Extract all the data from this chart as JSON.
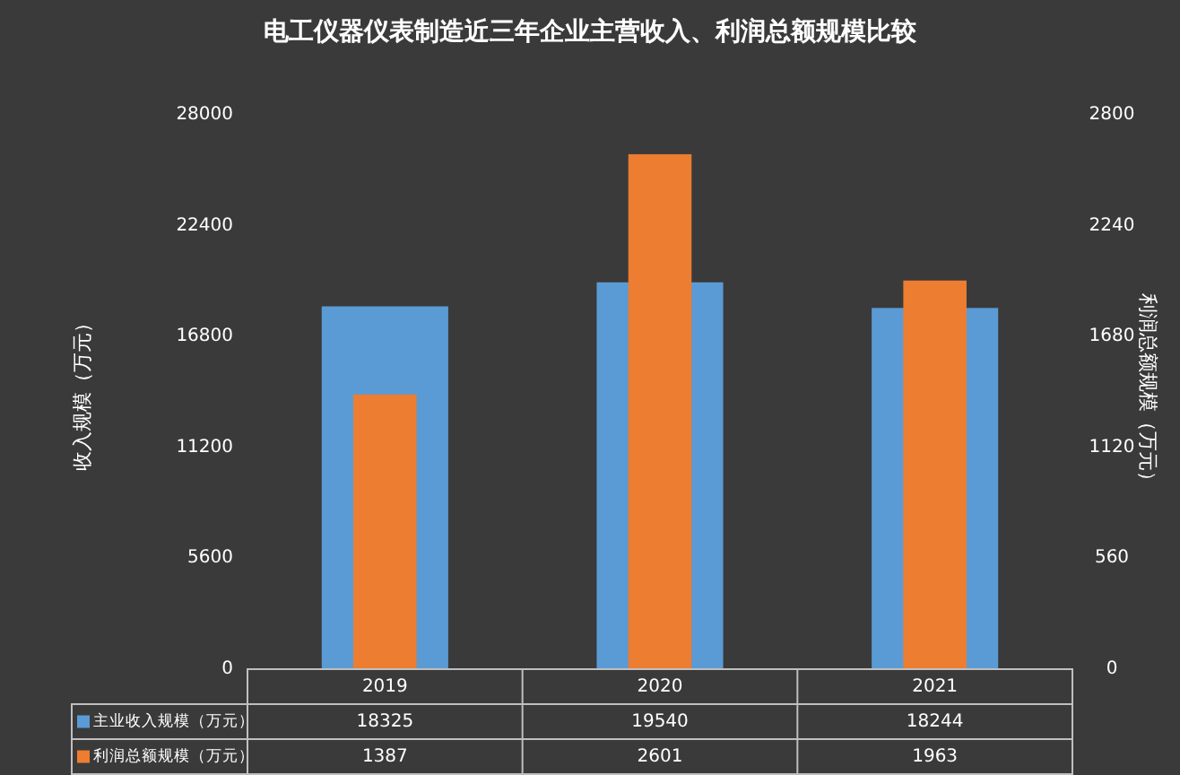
{
  "chart_data": {
    "type": "bar",
    "title": "电工仪器仪表制造近三年企业主营收入、利润总额规模比较",
    "ylabel": "收入规模（万元）",
    "y2label": "利润总额规模（万元）",
    "categories": [
      "2019",
      "2020",
      "2021"
    ],
    "series": [
      {
        "name": "主业收入规模（万元）",
        "color": "#5b9bd5",
        "values": [
          18325,
          19540,
          18244
        ]
      },
      {
        "name": "利润总额规模（万元）",
        "color": "#ed7d31",
        "values": [
          1387,
          2601,
          1963
        ],
        "axis": "y2"
      }
    ],
    "ylim": [
      0,
      28000
    ],
    "yticks": [
      0,
      5600,
      11200,
      16800,
      22400,
      28000
    ],
    "y2lim": [
      0,
      2800
    ],
    "y2ticks": [
      0,
      560,
      1120,
      1680,
      2240,
      2800
    ],
    "data_labels": true,
    "legend": "bottom"
  }
}
